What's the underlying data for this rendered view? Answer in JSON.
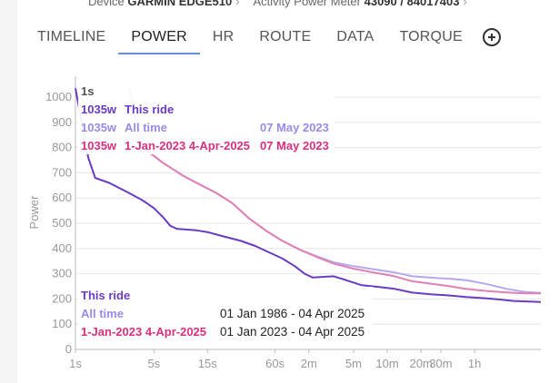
{
  "header": {
    "device_label": "Device",
    "device_value": "GARMIN EDGE510",
    "meter_label": "Activity Power Meter",
    "meter_value": "43090 / 84017403"
  },
  "tabs": [
    {
      "label": "TIMELINE",
      "active": false
    },
    {
      "label": "POWER",
      "active": true
    },
    {
      "label": "HR",
      "active": false
    },
    {
      "label": "ROUTE",
      "active": false
    },
    {
      "label": "DATA",
      "active": false
    },
    {
      "label": "TORQUE",
      "active": false
    }
  ],
  "legend_top": {
    "duration": "1s",
    "rows": [
      {
        "watts": "1035w",
        "label": "This ride",
        "date": ""
      },
      {
        "watts": "1035w",
        "label": "All time",
        "date": "07 May 2023"
      },
      {
        "watts": "1035w",
        "label": "1-Jan-2023 4-Apr-2025",
        "date": "07 May 2023"
      }
    ]
  },
  "legend_bottom": {
    "rows": [
      {
        "label": "This ride",
        "range": ""
      },
      {
        "label": "All time",
        "range": "01 Jan 1986 - 04 Apr 2025"
      },
      {
        "label": "1-Jan-2023 4-Apr-2025",
        "range": "01 Jan 2023 - 04 Apr 2025"
      }
    ]
  },
  "colors": {
    "this_ride": "#6a3bc4",
    "all_time": "#b4a9ef",
    "range": "#e080b4",
    "grid": "#e6e6e6"
  },
  "chart_data": {
    "type": "line",
    "title": "",
    "xlabel": "",
    "ylabel": "Power",
    "x_scale": "log",
    "x_ticks": [
      {
        "label": "1s",
        "seconds": 1
      },
      {
        "label": "5s",
        "seconds": 5
      },
      {
        "label": "15s",
        "seconds": 15
      },
      {
        "label": "60s",
        "seconds": 60
      },
      {
        "label": "2m",
        "seconds": 120
      },
      {
        "label": "5m",
        "seconds": 300
      },
      {
        "label": "10m",
        "seconds": 600
      },
      {
        "label": "20m",
        "seconds": 1200
      },
      {
        "label": "30m",
        "seconds": 1800
      },
      {
        "label": "1h",
        "seconds": 3600
      }
    ],
    "x_range_seconds": [
      1,
      14000
    ],
    "y_ticks": [
      0,
      100,
      200,
      300,
      400,
      500,
      600,
      700,
      800,
      900,
      1000
    ],
    "ylim": [
      0,
      1035
    ],
    "series": [
      {
        "name": "All time",
        "color_key": "all_time",
        "points": [
          [
            3,
            1035
          ],
          [
            4,
            800
          ],
          [
            6,
            740
          ],
          [
            9,
            690
          ],
          [
            12,
            660
          ],
          [
            18,
            620
          ],
          [
            25,
            580
          ],
          [
            35,
            520
          ],
          [
            50,
            470
          ],
          [
            70,
            430
          ],
          [
            100,
            395
          ],
          [
            150,
            365
          ],
          [
            200,
            345
          ],
          [
            300,
            330
          ],
          [
            450,
            318
          ],
          [
            700,
            305
          ],
          [
            1000,
            290
          ],
          [
            1500,
            284
          ],
          [
            2200,
            280
          ],
          [
            3000,
            275
          ],
          [
            4500,
            260
          ],
          [
            7000,
            240
          ],
          [
            10000,
            228
          ],
          [
            14000,
            224
          ]
        ]
      },
      {
        "name": "1-Jan-2023 4-Apr-2025",
        "color_key": "range",
        "points": [
          [
            3,
            1035
          ],
          [
            4,
            800
          ],
          [
            6,
            740
          ],
          [
            9,
            690
          ],
          [
            12,
            660
          ],
          [
            18,
            620
          ],
          [
            25,
            580
          ],
          [
            35,
            520
          ],
          [
            50,
            470
          ],
          [
            70,
            430
          ],
          [
            100,
            395
          ],
          [
            150,
            362
          ],
          [
            200,
            340
          ],
          [
            300,
            320
          ],
          [
            450,
            305
          ],
          [
            700,
            290
          ],
          [
            1000,
            270
          ],
          [
            1500,
            260
          ],
          [
            2200,
            250
          ],
          [
            3000,
            240
          ],
          [
            4500,
            232
          ],
          [
            7000,
            226
          ],
          [
            10000,
            222
          ],
          [
            14000,
            222
          ]
        ]
      },
      {
        "name": "This ride",
        "color_key": "this_ride",
        "points": [
          [
            1,
            1035
          ],
          [
            1.3,
            760
          ],
          [
            1.5,
            680
          ],
          [
            2,
            660
          ],
          [
            3,
            620
          ],
          [
            4,
            590
          ],
          [
            5,
            560
          ],
          [
            6,
            525
          ],
          [
            7,
            490
          ],
          [
            8,
            478
          ],
          [
            12,
            472
          ],
          [
            15,
            465
          ],
          [
            20,
            450
          ],
          [
            30,
            430
          ],
          [
            40,
            410
          ],
          [
            50,
            390
          ],
          [
            70,
            360
          ],
          [
            90,
            330
          ],
          [
            110,
            300
          ],
          [
            130,
            285
          ],
          [
            200,
            290
          ],
          [
            300,
            265
          ],
          [
            350,
            255
          ],
          [
            500,
            248
          ],
          [
            700,
            240
          ],
          [
            1000,
            225
          ],
          [
            1500,
            218
          ],
          [
            2000,
            215
          ],
          [
            3000,
            208
          ],
          [
            4500,
            203
          ],
          [
            6000,
            198
          ],
          [
            8000,
            192
          ],
          [
            11000,
            190
          ],
          [
            14000,
            188
          ]
        ]
      }
    ]
  }
}
